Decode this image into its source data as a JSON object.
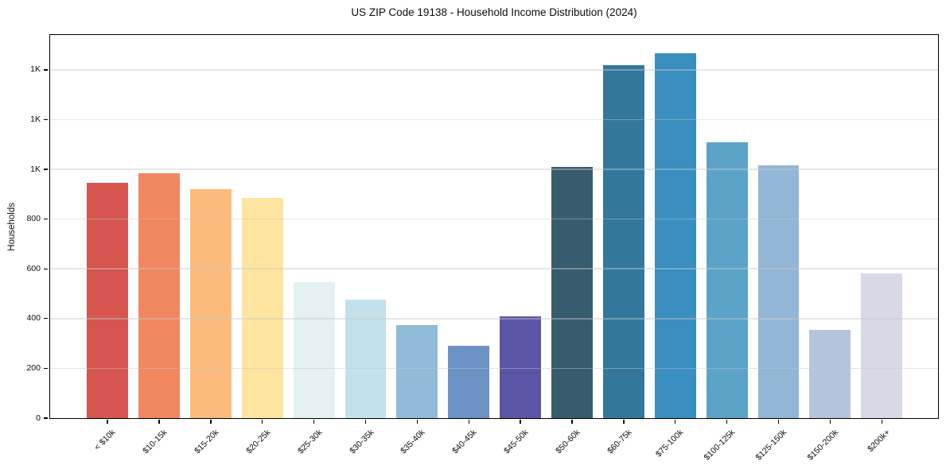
{
  "chart_data": {
    "type": "bar",
    "title": "US ZIP Code 19138 - Household Income Distribution (2024)",
    "xlabel": "",
    "ylabel": "Households",
    "categories": [
      "< $10k",
      "$10-15k",
      "$15-20k",
      "$20-25k",
      "$25-30k",
      "$30-35k",
      "$35-40k",
      "$40-45k",
      "$45-50k",
      "$50-60k",
      "$60-75k",
      "$75-100k",
      "$100-125k",
      "$125-150k",
      "$150-200k",
      "$200k+"
    ],
    "values": [
      945,
      985,
      920,
      885,
      545,
      475,
      375,
      290,
      410,
      1010,
      1420,
      1465,
      1110,
      1015,
      355,
      580
    ],
    "bar_colors": [
      "#d6564f",
      "#f0875f",
      "#fbba7b",
      "#fde5a0",
      "#e4f1f3",
      "#c3e1ec",
      "#90bcd9",
      "#6d92c5",
      "#5a55a5",
      "#375c6d",
      "#33789c",
      "#3a8ec0",
      "#5ca3c8",
      "#92b6d5",
      "#b5c4dd",
      "#d8d9e7"
    ],
    "ylim": [
      0,
      1540
    ],
    "yticks": [
      {
        "value": 0,
        "label": "0"
      },
      {
        "value": 200,
        "label": "200"
      },
      {
        "value": 400,
        "label": "400"
      },
      {
        "value": 600,
        "label": "600"
      },
      {
        "value": 800,
        "label": "800"
      },
      {
        "value": 1000,
        "label": "1K"
      },
      {
        "value": 1200,
        "label": "1K"
      },
      {
        "value": 1400,
        "label": "1K"
      }
    ],
    "grid": "horizontal",
    "legend": "none",
    "frame": "box"
  }
}
